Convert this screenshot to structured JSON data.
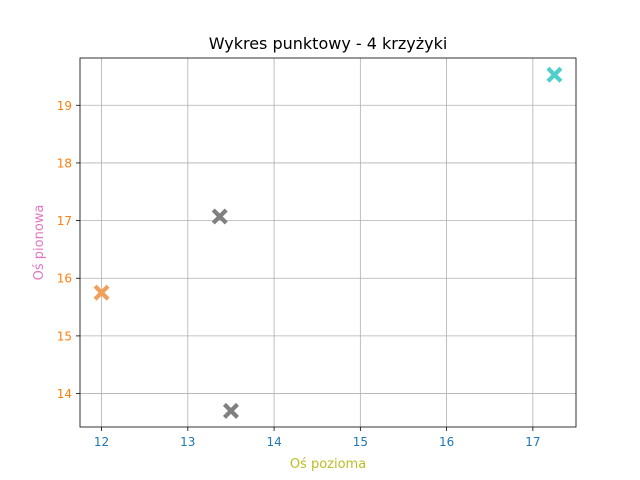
{
  "chart_data": {
    "type": "scatter",
    "title": "Wykres punktowy - 4 krzyżyki",
    "xlabel": "Oś pozioma",
    "ylabel": "Oś pionowa",
    "xlim": [
      11.75,
      17.5
    ],
    "ylim": [
      13.42,
      19.82
    ],
    "xticks": [
      "12",
      "13",
      "14",
      "15",
      "16",
      "17"
    ],
    "yticks": [
      "14",
      "15",
      "16",
      "17",
      "18",
      "19"
    ],
    "grid": true,
    "marker": "X",
    "points": [
      {
        "x": 12.0,
        "y": 15.75,
        "color": "#f0a05a"
      },
      {
        "x": 13.37,
        "y": 17.07,
        "color": "#808080"
      },
      {
        "x": 13.5,
        "y": 13.7,
        "color": "#808080"
      },
      {
        "x": 17.25,
        "y": 19.53,
        "color": "#4ecfcb"
      }
    ]
  },
  "colors": {
    "xtick_color": "#1f77b4",
    "ytick_color": "#ff7f0e",
    "xlabel_color": "#bcbd22",
    "ylabel_color": "#e377c2",
    "grid_color": "#b0b0b0"
  }
}
